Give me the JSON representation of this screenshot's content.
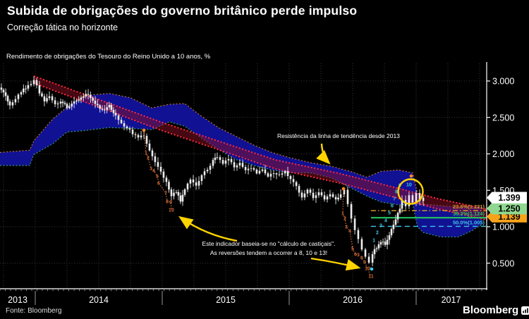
{
  "header": {
    "title": "Subida de obrigações do governo britânico perde impulso",
    "subtitle": "Correção tática no horizonte"
  },
  "source": "Fonte: Bloomberg",
  "brand": {
    "name": "Bloomberg"
  },
  "chart_data": {
    "type": "candlestick",
    "title": "Rendimento de obrigações do Tesouro do Reino Unido a 10 anos, %",
    "colors": {
      "background": "#000000",
      "candle": "#ededed",
      "cloud_fill": "#12129e",
      "cloud_edge_top": "#c87d2e",
      "cloud_edge_bottom": "#3aa65a",
      "trend_line": "#ff2a3c",
      "trend_fill": "rgba(140,15,35,0.5)",
      "countdown_down": "#d06a38",
      "countdown_up": "#3ec9e8",
      "dot_orange": "#ff8a25",
      "dot_cyan": "#35d0ef",
      "highlight": "#ffd400",
      "grid": "#3a3a3a",
      "axis": "#ffffff"
    },
    "y_axis": {
      "tick_values": [
        3.0,
        2.5,
        2.0,
        1.5,
        1.0,
        0.5
      ],
      "tick_labels": [
        "3.000",
        "2.500",
        "2.000",
        "1.500",
        "1.000",
        "0.500"
      ],
      "range": [
        0.15,
        3.24
      ]
    },
    "x_axis": {
      "year_labels": [
        "2013",
        "2014",
        "2015",
        "2016",
        "2017"
      ],
      "boundaries_t": [
        2013.722,
        2014,
        2015,
        2016,
        2017,
        2017.55
      ]
    },
    "series_anchors": [
      [
        2013.733,
        2.88
      ],
      [
        2013.767,
        2.8
      ],
      [
        2013.8,
        2.66
      ],
      [
        2013.844,
        2.76
      ],
      [
        2013.889,
        2.86
      ],
      [
        2013.944,
        2.93
      ],
      [
        2013.989,
        3.02
      ],
      [
        2014.033,
        2.84
      ],
      [
        2014.072,
        2.72
      ],
      [
        2014.111,
        2.79
      ],
      [
        2014.156,
        2.68
      ],
      [
        2014.2,
        2.73
      ],
      [
        2014.25,
        2.64
      ],
      [
        2014.306,
        2.71
      ],
      [
        2014.361,
        2.78
      ],
      [
        2014.417,
        2.82
      ],
      [
        2014.472,
        2.68
      ],
      [
        2014.528,
        2.59
      ],
      [
        2014.583,
        2.66
      ],
      [
        2014.633,
        2.52
      ],
      [
        2014.678,
        2.42
      ],
      [
        2014.722,
        2.36
      ],
      [
        2014.767,
        2.28
      ],
      [
        2014.811,
        2.22
      ],
      [
        2014.856,
        2.26
      ],
      [
        2014.9,
        2.05
      ],
      [
        2014.944,
        1.88
      ],
      [
        2014.989,
        1.74
      ],
      [
        2015.033,
        1.6
      ],
      [
        2015.072,
        1.42
      ],
      [
        2015.111,
        1.48
      ],
      [
        2015.144,
        1.35
      ],
      [
        2015.178,
        1.52
      ],
      [
        2015.222,
        1.64
      ],
      [
        2015.267,
        1.57
      ],
      [
        2015.311,
        1.71
      ],
      [
        2015.356,
        1.78
      ],
      [
        2015.4,
        1.9
      ],
      [
        2015.433,
        1.97
      ],
      [
        2015.478,
        1.88
      ],
      [
        2015.522,
        1.94
      ],
      [
        2015.567,
        1.8
      ],
      [
        2015.611,
        1.86
      ],
      [
        2015.656,
        1.76
      ],
      [
        2015.7,
        1.82
      ],
      [
        2015.744,
        1.73
      ],
      [
        2015.789,
        1.79
      ],
      [
        2015.833,
        1.69
      ],
      [
        2015.878,
        1.74
      ],
      [
        2015.922,
        1.7
      ],
      [
        2015.967,
        1.75
      ],
      [
        2016.011,
        1.66
      ],
      [
        2016.056,
        1.56
      ],
      [
        2016.1,
        1.4
      ],
      [
        2016.144,
        1.5
      ],
      [
        2016.189,
        1.4
      ],
      [
        2016.233,
        1.47
      ],
      [
        2016.278,
        1.38
      ],
      [
        2016.322,
        1.44
      ],
      [
        2016.367,
        1.37
      ],
      [
        2016.406,
        1.45
      ],
      [
        2016.433,
        1.5
      ],
      [
        2016.461,
        1.3
      ],
      [
        2016.489,
        1.1
      ],
      [
        2016.517,
        0.95
      ],
      [
        2016.544,
        0.83
      ],
      [
        2016.572,
        0.7
      ],
      [
        2016.6,
        0.6
      ],
      [
        2016.628,
        0.52
      ],
      [
        2016.656,
        0.64
      ],
      [
        2016.689,
        0.72
      ],
      [
        2016.722,
        0.8
      ],
      [
        2016.756,
        0.76
      ],
      [
        2016.789,
        0.9
      ],
      [
        2016.822,
        1.02
      ],
      [
        2016.856,
        1.18
      ],
      [
        2016.889,
        1.35
      ],
      [
        2016.917,
        1.28
      ],
      [
        2016.944,
        1.44
      ],
      [
        2016.972,
        1.34
      ],
      [
        2017.0,
        1.46
      ],
      [
        2017.028,
        1.37
      ],
      [
        2017.056,
        1.399
      ]
    ],
    "last_close": 1.399,
    "ichimoku_cloud": {
      "fill": "#12129e",
      "anchors": [
        [
          2013.722,
          2.02,
          1.84
        ],
        [
          2013.956,
          2.05,
          1.84
        ],
        [
          2013.989,
          2.18,
          1.99
        ],
        [
          2014.139,
          2.48,
          2.14
        ],
        [
          2014.25,
          2.64,
          2.3
        ],
        [
          2014.389,
          2.8,
          2.32
        ],
        [
          2014.583,
          2.83,
          2.36
        ],
        [
          2014.75,
          2.77,
          2.35
        ],
        [
          2014.917,
          2.63,
          2.33
        ],
        [
          2015.056,
          2.68,
          2.44
        ],
        [
          2015.178,
          2.69,
          2.38
        ],
        [
          2015.306,
          2.52,
          2.22
        ],
        [
          2015.444,
          2.36,
          2.06
        ],
        [
          2015.583,
          2.24,
          1.92
        ],
        [
          2015.722,
          2.12,
          1.84
        ],
        [
          2015.861,
          2.02,
          1.78
        ],
        [
          2016.0,
          1.95,
          1.74
        ],
        [
          2016.167,
          1.88,
          1.74
        ],
        [
          2016.333,
          1.83,
          1.67
        ],
        [
          2016.5,
          1.75,
          1.52
        ],
        [
          2016.611,
          1.68,
          1.42
        ],
        [
          2016.722,
          1.76,
          1.34
        ],
        [
          2016.861,
          1.78,
          1.3
        ],
        [
          2016.972,
          1.74,
          1.31
        ],
        [
          2017.011,
          1.45,
          1.0
        ],
        [
          2017.056,
          1.31,
          0.92
        ],
        [
          2017.194,
          1.29,
          0.86
        ],
        [
          2017.333,
          1.27,
          0.86
        ],
        [
          2017.433,
          1.28,
          0.94
        ],
        [
          2017.517,
          1.27,
          1.03
        ]
      ]
    },
    "trend_channel": {
      "upper": [
        [
          2013.989,
          3.068
        ],
        [
          2015.0,
          2.43
        ],
        [
          2015.889,
          1.918
        ],
        [
          2016.389,
          1.734
        ],
        [
          2016.806,
          1.551
        ],
        [
          2017.167,
          1.386
        ],
        [
          2017.6,
          1.222
        ]
      ],
      "lower": [
        [
          2013.989,
          2.971
        ],
        [
          2015.0,
          2.319
        ],
        [
          2015.889,
          1.795
        ],
        [
          2016.389,
          1.604
        ],
        [
          2016.806,
          1.415
        ],
        [
          2017.167,
          1.245
        ],
        [
          2017.6,
          1.075
        ]
      ]
    },
    "fib_levels": [
      {
        "label": "23.6%(1.221)",
        "value": 1.221,
        "color": "#d79a2b",
        "dash": "7,3,1.5,3",
        "width": 1.6,
        "t_start": 2016.644
      },
      {
        "label": "38.2%(1.124)",
        "value": 1.124,
        "color": "#22c55e",
        "dash": "",
        "width": 2.2,
        "t_start": 2016.644
      },
      {
        "label": "50.0%(1.005)",
        "value": 1.005,
        "color": "#3ec9e8",
        "dash": "7,5",
        "width": 1.4,
        "t_start": 2016.644
      }
    ],
    "price_markers": [
      {
        "label": "1.399",
        "value": 1.399,
        "bg": "#ffffff"
      },
      {
        "label": "1.250",
        "value": 1.25,
        "bg": "#90d890"
      },
      {
        "label": "1.139",
        "value": 1.139,
        "bg": "#f7a21a"
      }
    ],
    "countdowns": [
      {
        "color": "#d06a38",
        "line": true,
        "dot": [
          2014.856,
          2.324
        ],
        "numbers": [
          {
            "label": "1",
            "t": 2014.872,
            "v": 2.014
          },
          {
            "label": "2",
            "t": 2014.889,
            "v": 1.947
          },
          {
            "label": "3",
            "t": 2014.911,
            "v": 1.802
          },
          {
            "label": "4",
            "t": 2014.933,
            "v": 1.773
          },
          {
            "label": "5",
            "t": 2014.961,
            "v": 1.696
          },
          {
            "label": "6",
            "t": 2014.972,
            "v": 1.599
          },
          {
            "label": "7",
            "t": 2015.028,
            "v": 1.464
          },
          {
            "label": "8",
            "t": 2015.039,
            "v": 1.348
          },
          {
            "label": "9",
            "t": 2015.067,
            "v": 1.338
          },
          {
            "label": "10",
            "t": 2015.072,
            "v": 1.232
          }
        ]
      },
      {
        "color": "#d06a38",
        "line": true,
        "dot": [
          2016.428,
          1.522
        ],
        "numbers": [
          {
            "label": "1",
            "t": 2016.422,
            "v": 1.184
          },
          {
            "label": "2",
            "t": 2016.439,
            "v": 1.116
          },
          {
            "label": "3",
            "t": 2016.45,
            "v": 1.0
          },
          {
            "label": "4",
            "t": 2016.478,
            "v": 0.942
          },
          {
            "label": "5",
            "t": 2016.5,
            "v": 0.7
          },
          {
            "label": "6",
            "t": 2016.522,
            "v": 0.623
          },
          {
            "label": "7",
            "t": 2016.544,
            "v": 0.614
          },
          {
            "label": "8",
            "t": 2016.572,
            "v": 0.575
          },
          {
            "label": "9",
            "t": 2016.594,
            "v": 0.517
          },
          {
            "label": "10",
            "t": 2016.617,
            "v": 0.43
          },
          {
            "label": "11",
            "t": 2016.644,
            "v": 0.324
          }
        ]
      },
      {
        "color": "#3ec9e8",
        "line": false,
        "numbers": [
          {
            "label": "1",
            "t": 2016.667,
            "v": 0.816
          },
          {
            "label": "2",
            "t": 2016.694,
            "v": 0.923
          },
          {
            "label": "3",
            "t": 2016.722,
            "v": 1.019
          },
          {
            "label": "4",
            "t": 2016.761,
            "v": 1.087
          },
          {
            "label": "5",
            "t": 2016.789,
            "v": 1.193
          },
          {
            "label": "6",
            "t": 2016.811,
            "v": 1.29
          },
          {
            "label": "7",
            "t": 2016.828,
            "v": 1.386
          },
          {
            "label": "8",
            "t": 2016.844,
            "v": 1.483
          },
          {
            "label": "9",
            "t": 2016.872,
            "v": 1.57
          },
          {
            "label": "10",
            "t": 2016.944,
            "v": 1.58
          }
        ]
      }
    ],
    "dots": {
      "orange": [
        [
          2014.856,
          2.324
        ],
        [
          2016.428,
          1.522
        ],
        [
          2016.961,
          1.696
        ]
      ],
      "cyan": [
        [
          2016.65,
          0.42
        ]
      ]
    },
    "highlight_circle": {
      "t": 2016.956,
      "value": 1.483,
      "r": 17.5
    },
    "annotations": {
      "trend": {
        "text": "Resistência da linha de tendência desde 2013"
      },
      "indicator": {
        "line1": "Este indicador baseia-se no \"cálculo de castiçais\".",
        "line2": "As reversões tendem a ocorrer a 8, 10 e 13!"
      },
      "arrows": [
        {
          "path": [
            456,
            204,
            457,
            222,
            466,
            231
          ]
        },
        {
          "path": [
            336,
            342,
            292,
            334,
            256,
            309
          ]
        },
        {
          "path": [
            441,
            367,
            475,
            372,
            508,
            380
          ]
        }
      ]
    }
  }
}
